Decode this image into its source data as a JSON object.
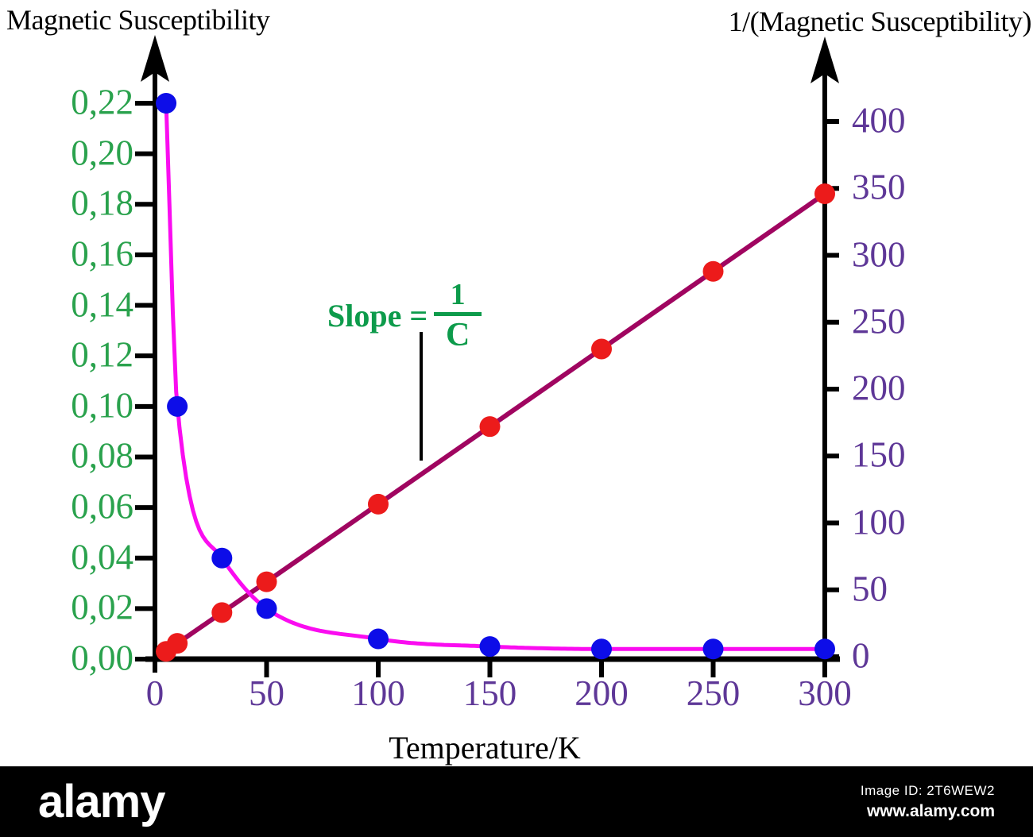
{
  "watermark": {
    "logo": "alamy",
    "image_id": "Image ID: 2T6WEW2",
    "url": "www.alamy.com"
  },
  "chart_data": {
    "type": "line",
    "left_axis_title": "Magnetic Susceptibility",
    "right_axis_title": "1/(Magnetic Susceptibility)",
    "xlabel": "Temperature/K",
    "xlim": [
      0,
      300
    ],
    "left_ylim": [
      0,
      0.22
    ],
    "right_ylim": [
      0,
      400
    ],
    "grid": false,
    "legend": null,
    "x_tick_labels": [
      "0",
      "50",
      "100",
      "150",
      "200",
      "250",
      "300"
    ],
    "left_y_tick_labels": [
      "0,00",
      "0,02",
      "0,04",
      "0,06",
      "0,08",
      "0,10",
      "0,12",
      "0,14",
      "0,16",
      "0,18",
      "0,20",
      "0,22"
    ],
    "right_y_tick_labels": [
      "0",
      "50",
      "100",
      "150",
      "200",
      "250",
      "300",
      "350",
      "400"
    ],
    "annotation": {
      "label": "Slope =",
      "numerator": "1",
      "denominator": "C"
    },
    "series": [
      {
        "name": "magnetic-susceptibility",
        "axis": "left",
        "marker": "circle",
        "marker_color": "#0d0de8",
        "line_color": "#fa0cf0",
        "x": [
          5,
          10,
          30,
          50,
          100,
          150,
          200,
          250,
          300
        ],
        "y": [
          0.22,
          0.1,
          0.04,
          0.02,
          0.008,
          0.005,
          0.004,
          0.004,
          0.004
        ]
      },
      {
        "name": "inverse-magnetic-susceptibility",
        "axis": "right",
        "marker": "circle",
        "marker_color": "#ec1b1b",
        "line_color": "#a00560",
        "x": [
          5,
          10,
          30,
          50,
          100,
          150,
          200,
          250,
          300
        ],
        "y": [
          4,
          10,
          33,
          56,
          114,
          172,
          230,
          288,
          346
        ]
      }
    ],
    "colors": {
      "left_tick_label": "#2aa24d",
      "right_tick_label": "#5e3797",
      "x_tick_label": "#5e3797",
      "annotation": "#0d9b4b",
      "axis": "#000000"
    }
  }
}
